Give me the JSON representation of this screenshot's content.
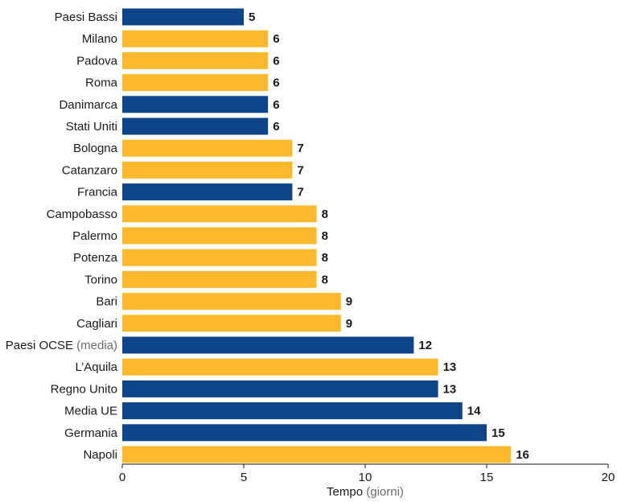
{
  "chart_data": {
    "type": "bar",
    "orientation": "horizontal",
    "categories": [
      "Paesi Bassi",
      "Milano",
      "Padova",
      "Roma",
      "Danimarca",
      "Stati Uniti",
      "Bologna",
      "Catanzaro",
      "Francia",
      "Campobasso",
      "Palermo",
      "Potenza",
      "Torino",
      "Bari",
      "Cagliari",
      "Paesi OCSE (media)",
      "L’Aquila",
      "Regno Unito",
      "Media UE",
      "Germania",
      "Napoli"
    ],
    "values": [
      5,
      6,
      6,
      6,
      6,
      6,
      7,
      7,
      7,
      8,
      8,
      8,
      8,
      9,
      9,
      12,
      13,
      13,
      14,
      15,
      16
    ],
    "groups": [
      "foreign",
      "italy",
      "italy",
      "italy",
      "foreign",
      "foreign",
      "italy",
      "italy",
      "foreign",
      "italy",
      "italy",
      "italy",
      "italy",
      "italy",
      "italy",
      "foreign",
      "italy",
      "foreign",
      "foreign",
      "foreign",
      "italy"
    ],
    "colors": {
      "italy": "#fdb92e",
      "foreign": "#0e4488"
    },
    "xlabel": "Tempo",
    "xlabel_suffix": "(giorni)",
    "xlim": [
      0,
      20
    ],
    "xticks": [
      0,
      5,
      10,
      15,
      20
    ],
    "data_labels": true,
    "grid": false,
    "legend": false
  }
}
